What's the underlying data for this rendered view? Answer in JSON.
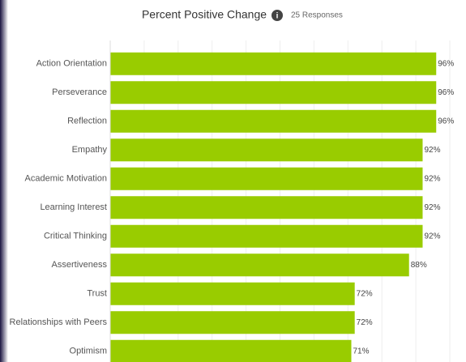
{
  "chart_data": {
    "type": "bar",
    "orientation": "horizontal",
    "title": "Percent Positive Change",
    "subtitle": "25 Responses",
    "categories": [
      "Action Orientation",
      "Perseverance",
      "Reflection",
      "Empathy",
      "Academic Motivation",
      "Learning Interest",
      "Critical Thinking",
      "Assertiveness",
      "Trust",
      "Relationships with Peers",
      "Optimism"
    ],
    "values": [
      96,
      96,
      96,
      92,
      92,
      92,
      92,
      88,
      72,
      72,
      71
    ],
    "value_labels": [
      "96%",
      "96%",
      "96%",
      "92%",
      "92%",
      "92%",
      "92%",
      "88%",
      "72%",
      "72%",
      "71%"
    ],
    "color": "#99cc00",
    "xlim": [
      0,
      100
    ],
    "xticks": [
      0,
      10,
      20,
      30,
      40,
      50,
      60,
      70,
      80,
      90,
      100
    ],
    "tick_labels": false,
    "grid": true
  }
}
